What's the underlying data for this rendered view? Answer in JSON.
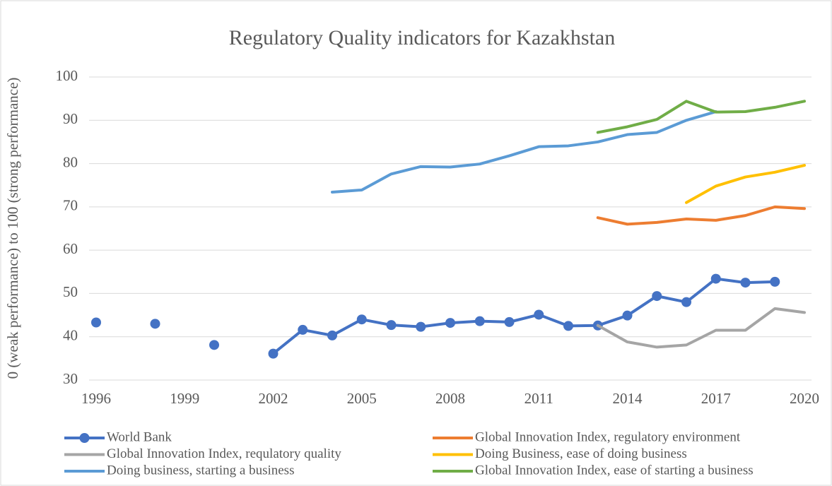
{
  "chart_data": {
    "type": "line",
    "title": "Regulatory Quality indicators for Kazakhstan",
    "y_label": "0 (weak performance) to 100 (strong performance)",
    "x": [
      1996,
      1997,
      1998,
      1999,
      2000,
      2001,
      2002,
      2003,
      2004,
      2005,
      2006,
      2007,
      2008,
      2009,
      2010,
      2011,
      2012,
      2013,
      2014,
      2015,
      2016,
      2017,
      2018,
      2019,
      2020
    ],
    "xlim": [
      1996,
      2020
    ],
    "xticks": [
      1996,
      1999,
      2002,
      2005,
      2008,
      2011,
      2014,
      2017,
      2020
    ],
    "ylim": [
      30,
      100
    ],
    "yticks": [
      30,
      40,
      50,
      60,
      70,
      80,
      90,
      100
    ],
    "grid": true,
    "legend": "bottom",
    "series": [
      {
        "name": "World Bank",
        "color": "#4472c4",
        "marker": "circle",
        "values": [
          43.3,
          null,
          43.0,
          null,
          38.1,
          null,
          36.1,
          41.6,
          40.3,
          44.0,
          42.7,
          42.3,
          43.2,
          43.6,
          43.4,
          45.1,
          42.5,
          42.6,
          44.9,
          49.4,
          48.0,
          53.4,
          52.5,
          52.7,
          null
        ]
      },
      {
        "name": "Global Innovation Index, regulatory environment",
        "color": "#ed7d31",
        "values": [
          null,
          null,
          null,
          null,
          null,
          null,
          null,
          null,
          null,
          null,
          null,
          null,
          null,
          null,
          null,
          null,
          null,
          67.5,
          66.0,
          66.4,
          67.2,
          66.9,
          68.0,
          70.0,
          69.6
        ]
      },
      {
        "name": "Global Innovation Index, requlatory quality",
        "color": "#a5a5a5",
        "values": [
          null,
          null,
          null,
          null,
          null,
          null,
          null,
          null,
          null,
          null,
          null,
          null,
          null,
          null,
          null,
          null,
          null,
          42.6,
          38.8,
          37.6,
          38.1,
          41.5,
          41.5,
          46.5,
          45.6
        ]
      },
      {
        "name": "Doing Business, ease of doing business",
        "color": "#ffc000",
        "values": [
          null,
          null,
          null,
          null,
          null,
          null,
          null,
          null,
          null,
          null,
          null,
          null,
          null,
          null,
          null,
          null,
          null,
          null,
          null,
          null,
          71.0,
          74.8,
          76.9,
          78.0,
          79.6
        ]
      },
      {
        "name": "Doing business, starting a business",
        "color": "#5b9bd5",
        "values": [
          null,
          null,
          null,
          null,
          null,
          null,
          null,
          null,
          73.4,
          73.9,
          77.6,
          79.3,
          79.2,
          79.9,
          81.8,
          83.9,
          84.1,
          85.0,
          86.7,
          87.2,
          90.0,
          92.0,
          null,
          null,
          null
        ]
      },
      {
        "name": "Global Innovation Index, ease of starting a business",
        "color": "#70ad47",
        "values": [
          null,
          null,
          null,
          null,
          null,
          null,
          null,
          null,
          null,
          null,
          null,
          null,
          null,
          null,
          null,
          null,
          null,
          87.2,
          88.5,
          90.2,
          94.4,
          91.9,
          92.0,
          93.0,
          94.4
        ]
      }
    ]
  }
}
